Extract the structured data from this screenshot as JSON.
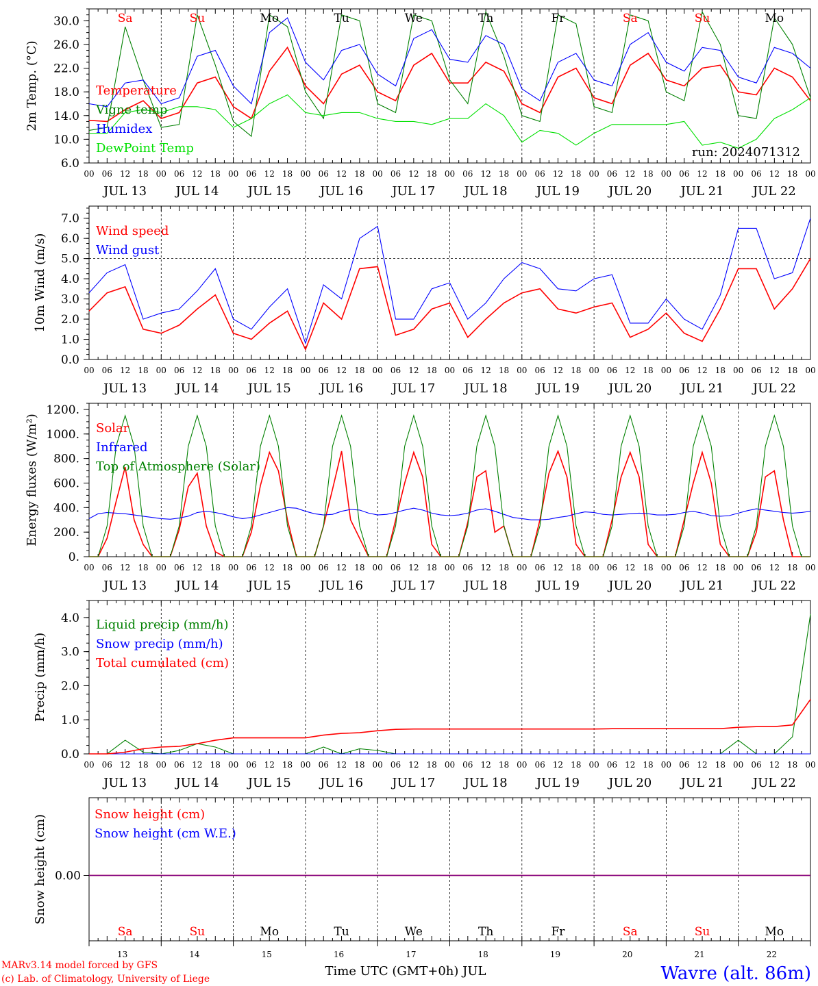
{
  "run_label": "run: 2024071312",
  "footer": {
    "model": "MARv3.14 model forced by GFS",
    "credit": "(c) Lab. of Climatology, University of Liege",
    "xtitle": "Time UTC (GMT+0h) JUL",
    "station": "Wavre (alt. 86m)"
  },
  "days": {
    "dates": [
      "JUL 13",
      "JUL 14",
      "JUL 15",
      "JUL 16",
      "JUL 17",
      "JUL 18",
      "JUL 19",
      "JUL 20",
      "JUL 21",
      "JUL 22"
    ],
    "weekdays": [
      "Sa",
      "Su",
      "Mo",
      "Tu",
      "We",
      "Th",
      "Fr",
      "Sa",
      "Su",
      "Mo"
    ],
    "weekday_colors": [
      "#ff0000",
      "#ff0000",
      "#000000",
      "#000000",
      "#000000",
      "#000000",
      "#000000",
      "#ff0000",
      "#ff0000",
      "#000000"
    ],
    "day_numbers": [
      "13",
      "14",
      "15",
      "16",
      "17",
      "18",
      "19",
      "20",
      "21",
      "22"
    ],
    "hour_ticks": [
      "00",
      "06",
      "12",
      "18"
    ],
    "final_hour": "00"
  },
  "colors": {
    "red": "#ff0000",
    "blue": "#0000ff",
    "dark_green": "#008000",
    "light_green": "#00e000",
    "purple": "#800080"
  },
  "chart_data": [
    {
      "type": "line",
      "ylabel": "2m Temp. (°C)",
      "ylim": [
        6,
        32
      ],
      "yticks": [
        "6.0",
        "10.0",
        "14.0",
        "18.0",
        "22.0",
        "26.0",
        "30.0"
      ],
      "x_hours": [
        0,
        6,
        12,
        18,
        24,
        30,
        36,
        42,
        48,
        54,
        60,
        66,
        72,
        78,
        84,
        90,
        96,
        102,
        108,
        114,
        120,
        126,
        132,
        138,
        144,
        150,
        156,
        162,
        168,
        174,
        180,
        186,
        192,
        198,
        204,
        210,
        216,
        222,
        228,
        234,
        240
      ],
      "series": [
        {
          "name": "Temperature",
          "color": "#ff0000",
          "values": [
            13.2,
            13.0,
            15.0,
            16.5,
            13.5,
            14.5,
            19.5,
            20.5,
            15.5,
            13.5,
            21.5,
            25.5,
            19.0,
            16.0,
            21.0,
            22.5,
            18.0,
            16.5,
            22.5,
            24.5,
            19.5,
            19.5,
            23.0,
            21.5,
            16.0,
            14.5,
            20.5,
            22.0,
            17.0,
            16.0,
            22.5,
            24.5,
            20.0,
            19.0,
            22.0,
            22.5,
            18.0,
            17.5,
            22.0,
            20.5,
            16.5
          ]
        },
        {
          "name": "Vigne temp",
          "color": "#008000",
          "values": [
            11.5,
            12.0,
            29.0,
            20.0,
            12.0,
            12.5,
            31.0,
            22.5,
            13.0,
            10.5,
            31.0,
            29.0,
            18.0,
            13.5,
            31.0,
            30.0,
            16.0,
            14.5,
            31.0,
            30.0,
            20.0,
            16.0,
            31.5,
            24.0,
            14.0,
            13.0,
            31.0,
            29.5,
            15.5,
            14.5,
            31.0,
            30.0,
            18.0,
            16.5,
            31.5,
            26.0,
            14.0,
            13.5,
            30.5,
            26.0,
            17.0
          ]
        },
        {
          "name": "Humidex",
          "color": "#0000ff",
          "values": [
            16.0,
            15.5,
            19.5,
            20.0,
            16.0,
            17.0,
            24.0,
            25.0,
            19.0,
            16.0,
            28.0,
            30.5,
            23.0,
            20.0,
            25.0,
            26.0,
            21.0,
            19.0,
            27.0,
            28.5,
            23.5,
            23.0,
            27.5,
            26.0,
            18.5,
            16.5,
            23.0,
            24.5,
            20.0,
            19.0,
            26.0,
            28.0,
            23.0,
            21.5,
            25.5,
            25.0,
            20.5,
            19.5,
            25.5,
            24.5,
            22.0
          ]
        },
        {
          "name": "DewPoint Temp",
          "color": "#00e000",
          "values": [
            11.0,
            11.0,
            14.5,
            15.0,
            14.5,
            15.5,
            15.5,
            15.0,
            12.0,
            13.5,
            16.0,
            17.5,
            14.5,
            14.0,
            14.5,
            14.5,
            13.5,
            13.0,
            13.0,
            12.5,
            13.5,
            13.5,
            16.0,
            14.0,
            9.5,
            11.5,
            11.0,
            9.0,
            11.0,
            12.5,
            12.5,
            12.5,
            12.5,
            13.0,
            9.0,
            9.5,
            8.5,
            10.0,
            13.5,
            15.0,
            17.0
          ]
        }
      ]
    },
    {
      "type": "line",
      "ylabel": "10m Wind (m/s)",
      "ylim": [
        0,
        7.6
      ],
      "yticks": [
        "0.0",
        "1.0",
        "2.0",
        "3.0",
        "4.0",
        "5.0",
        "6.0",
        "7.0"
      ],
      "reference_line": 5.0,
      "x_hours": [
        0,
        6,
        12,
        18,
        24,
        30,
        36,
        42,
        48,
        54,
        60,
        66,
        72,
        78,
        84,
        90,
        96,
        102,
        108,
        114,
        120,
        126,
        132,
        138,
        144,
        150,
        156,
        162,
        168,
        174,
        180,
        186,
        192,
        198,
        204,
        210,
        216,
        222,
        228,
        234,
        240
      ],
      "series": [
        {
          "name": "Wind speed",
          "color": "#ff0000",
          "values": [
            2.4,
            3.3,
            3.6,
            1.5,
            1.3,
            1.7,
            2.5,
            3.2,
            1.3,
            1.0,
            1.8,
            2.4,
            0.5,
            2.8,
            2.0,
            4.5,
            4.6,
            1.2,
            1.5,
            2.5,
            2.8,
            1.1,
            2.0,
            2.8,
            3.3,
            3.5,
            2.5,
            2.3,
            2.6,
            2.8,
            1.1,
            1.5,
            2.3,
            1.3,
            0.9,
            2.5,
            4.5,
            4.5,
            2.5,
            3.5,
            5.0
          ]
        },
        {
          "name": "Wind gust",
          "color": "#0000ff",
          "values": [
            3.3,
            4.3,
            4.7,
            2.0,
            2.3,
            2.5,
            3.4,
            4.5,
            2.0,
            1.5,
            2.6,
            3.5,
            0.8,
            3.7,
            3.0,
            6.0,
            6.6,
            2.0,
            2.0,
            3.5,
            3.8,
            2.0,
            2.8,
            4.0,
            4.8,
            4.5,
            3.5,
            3.4,
            4.0,
            4.2,
            1.8,
            1.8,
            3.0,
            2.0,
            1.5,
            3.2,
            6.5,
            6.5,
            4.0,
            4.3,
            7.0
          ]
        }
      ]
    },
    {
      "type": "line",
      "ylabel": "Energy fluxes (W/m²)",
      "ylim": [
        0,
        1250
      ],
      "yticks": [
        "0.",
        "200.",
        "400.",
        "600.",
        "800.",
        "1000.",
        "1200."
      ],
      "x_hours": [
        0,
        3,
        6,
        9,
        12,
        15,
        18,
        21,
        24,
        27,
        30,
        33,
        36,
        39,
        42,
        45,
        48,
        51,
        54,
        57,
        60,
        63,
        66,
        69,
        72,
        75,
        78,
        81,
        84,
        87,
        90,
        93,
        96,
        99,
        102,
        105,
        108,
        111,
        114,
        117,
        120,
        123,
        126,
        129,
        132,
        135,
        138,
        141,
        144,
        147,
        150,
        153,
        156,
        159,
        162,
        165,
        168,
        171,
        174,
        177,
        180,
        183,
        186,
        189,
        192,
        195,
        198,
        201,
        204,
        207,
        210,
        213,
        216,
        219,
        222,
        225,
        228,
        231,
        234,
        237,
        240
      ],
      "series": [
        {
          "name": "Solar",
          "color": "#ff0000",
          "values": [
            0,
            0,
            150,
            450,
            730,
            300,
            100,
            0,
            0,
            0,
            220,
            570,
            680,
            250,
            40,
            0,
            0,
            0,
            200,
            580,
            850,
            700,
            300,
            0,
            0,
            0,
            250,
            550,
            860,
            300,
            150,
            0,
            0,
            0,
            300,
            600,
            850,
            650,
            100,
            0,
            0,
            0,
            280,
            650,
            700,
            200,
            250,
            0,
            0,
            0,
            300,
            680,
            860,
            650,
            100,
            0,
            0,
            0,
            300,
            650,
            850,
            650,
            100,
            0,
            0,
            0,
            300,
            600,
            850,
            600,
            100,
            0,
            0,
            0,
            200,
            650,
            700,
            300,
            0,
            0,
            0
          ]
        },
        {
          "name": "Infrared",
          "color": "#0000ff",
          "values": [
            310,
            350,
            360,
            355,
            350,
            340,
            330,
            320,
            310,
            305,
            315,
            330,
            360,
            370,
            360,
            345,
            325,
            310,
            320,
            340,
            360,
            380,
            400,
            395,
            370,
            350,
            340,
            345,
            370,
            385,
            380,
            355,
            340,
            345,
            360,
            380,
            395,
            380,
            355,
            340,
            335,
            340,
            355,
            380,
            390,
            370,
            345,
            320,
            310,
            300,
            300,
            305,
            320,
            330,
            350,
            365,
            360,
            345,
            340,
            345,
            350,
            355,
            350,
            340,
            340,
            345,
            360,
            370,
            355,
            335,
            330,
            335,
            355,
            375,
            390,
            380,
            370,
            360,
            355,
            360,
            370
          ]
        },
        {
          "name": "Top of Atmosphere (Solar)",
          "color": "#008000",
          "values": [
            0,
            0,
            250,
            900,
            1150,
            900,
            250,
            0,
            0,
            0,
            250,
            900,
            1150,
            900,
            250,
            0,
            0,
            0,
            250,
            900,
            1150,
            900,
            250,
            0,
            0,
            0,
            250,
            900,
            1150,
            900,
            250,
            0,
            0,
            0,
            250,
            900,
            1150,
            900,
            250,
            0,
            0,
            0,
            250,
            900,
            1150,
            900,
            250,
            0,
            0,
            0,
            250,
            900,
            1150,
            900,
            250,
            0,
            0,
            0,
            250,
            900,
            1150,
            900,
            250,
            0,
            0,
            0,
            250,
            900,
            1150,
            900,
            250,
            0,
            0,
            0,
            250,
            900,
            1150,
            900,
            250,
            0,
            0
          ]
        }
      ]
    },
    {
      "type": "line",
      "ylabel": "Precip (mm/h)",
      "ylim": [
        0,
        4.5
      ],
      "yticks": [
        "0.0",
        "1.0",
        "2.0",
        "3.0",
        "4.0"
      ],
      "x_hours": [
        0,
        6,
        12,
        18,
        24,
        30,
        36,
        42,
        48,
        54,
        60,
        66,
        72,
        78,
        84,
        90,
        96,
        102,
        108,
        114,
        120,
        126,
        132,
        138,
        144,
        150,
        156,
        162,
        168,
        174,
        180,
        186,
        192,
        198,
        204,
        210,
        216,
        222,
        228,
        234,
        240
      ],
      "series": [
        {
          "name": "Liquid precip (mm/h)",
          "color": "#008000",
          "values": [
            0,
            0,
            0.4,
            0.05,
            0,
            0.1,
            0.3,
            0.2,
            0,
            0,
            0,
            0,
            0,
            0.2,
            0,
            0.15,
            0.1,
            0,
            0,
            0,
            0,
            0,
            0,
            0,
            0,
            0,
            0,
            0,
            0,
            0,
            0,
            0,
            0,
            0,
            0,
            0,
            0.4,
            0,
            0,
            0.5,
            4.1
          ]
        },
        {
          "name": "Snow precip (mm/h)",
          "color": "#0000ff",
          "values": [
            0,
            0,
            0,
            0,
            0,
            0,
            0,
            0,
            0,
            0,
            0,
            0,
            0,
            0,
            0,
            0,
            0,
            0,
            0,
            0,
            0,
            0,
            0,
            0,
            0,
            0,
            0,
            0,
            0,
            0,
            0,
            0,
            0,
            0,
            0,
            0,
            0,
            0,
            0,
            0,
            0
          ]
        },
        {
          "name": "Total cumulated (cm)",
          "color": "#ff0000",
          "values": [
            0,
            0,
            0.05,
            0.15,
            0.2,
            0.22,
            0.3,
            0.4,
            0.47,
            0.47,
            0.47,
            0.47,
            0.47,
            0.55,
            0.6,
            0.62,
            0.68,
            0.72,
            0.73,
            0.73,
            0.73,
            0.73,
            0.73,
            0.73,
            0.73,
            0.73,
            0.73,
            0.73,
            0.73,
            0.74,
            0.74,
            0.74,
            0.74,
            0.74,
            0.74,
            0.74,
            0.78,
            0.8,
            0.8,
            0.85,
            1.6
          ]
        }
      ]
    },
    {
      "type": "line",
      "ylabel": "Snow height (cm)",
      "yticks": [
        "0.00"
      ],
      "x_hours": [
        0,
        240
      ],
      "series": [
        {
          "name": "Snow height (cm)",
          "color": "#ff0000",
          "values": [
            0,
            0
          ]
        },
        {
          "name": "Snow height (cm W.E.)",
          "color": "#0000ff",
          "values": [
            0,
            0
          ]
        }
      ]
    }
  ]
}
